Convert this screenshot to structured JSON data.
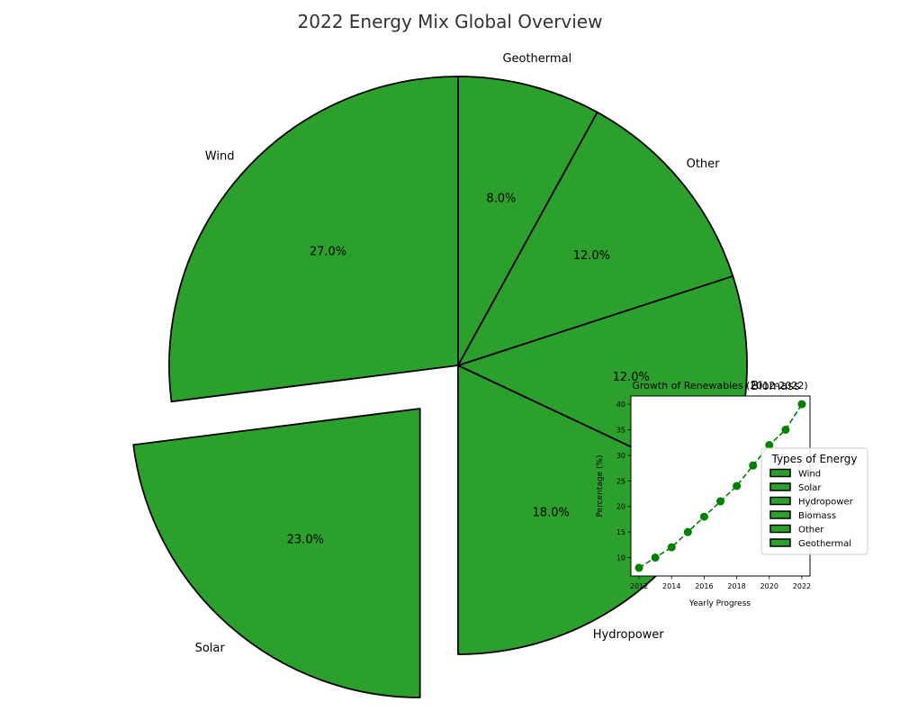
{
  "chart_data": [
    {
      "type": "pie",
      "title": "2022 Energy Mix Global Overview",
      "categories": [
        "Wind",
        "Solar",
        "Hydropower",
        "Biomass",
        "Other",
        "Geothermal"
      ],
      "values": [
        27.0,
        23.0,
        18.0,
        12.0,
        12.0,
        8.0
      ],
      "value_labels": [
        "27.0%",
        "23.0%",
        "18.0%",
        "12.0%",
        "12.0%",
        "8.0%"
      ],
      "exploded": "Solar",
      "start_angle": "top, counter-clockwise",
      "slice_color": "#2ca02c",
      "edge_color": "#000000",
      "legend": {
        "title": "Types of Energy",
        "placement": "right",
        "entries": [
          "Wind",
          "Solar",
          "Hydropower",
          "Biomass",
          "Other",
          "Geothermal"
        ]
      }
    },
    {
      "type": "line",
      "title": "Growth of Renewables (2012-2022)",
      "xlabel": "Yearly Progress",
      "ylabel": "Percentage (%)",
      "x": [
        2012,
        2013,
        2014,
        2015,
        2016,
        2017,
        2018,
        2019,
        2020,
        2021,
        2022
      ],
      "values": [
        8,
        10,
        12,
        15,
        18,
        21,
        24,
        28,
        32,
        35,
        40
      ],
      "xticks": [
        "2012",
        "2014",
        "2016",
        "2018",
        "2020",
        "2022"
      ],
      "yticks": [
        "10",
        "15",
        "20",
        "25",
        "30",
        "35",
        "40"
      ],
      "xlim": [
        2011.5,
        2022.5
      ],
      "ylim": [
        6.4,
        41.6
      ],
      "line_color": "#008000",
      "line_style": "dashed",
      "marker": "circle",
      "grid": false,
      "placement": "inset, lower-right"
    }
  ]
}
